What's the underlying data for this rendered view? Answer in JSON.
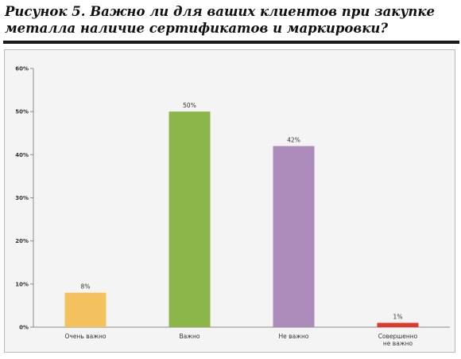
{
  "title": {
    "line1": "Рисунок 5. Важно ли для ваших клиентов при закупке",
    "line2": "металла наличие сертификатов и маркировки?"
  },
  "chart_data": {
    "type": "bar",
    "categories": [
      "Очень важно",
      "Важно",
      "Не важно",
      "Совершенно не важно"
    ],
    "category_lines": [
      [
        "Очень важно"
      ],
      [
        "Важно"
      ],
      [
        "Не важно"
      ],
      [
        "Совершенно",
        "не важно"
      ]
    ],
    "values": [
      8,
      50,
      42,
      1
    ],
    "data_labels": [
      "8%",
      "50%",
      "42%",
      "1%"
    ],
    "colors": [
      "#f3c25f",
      "#8db64a",
      "#ad8cbc",
      "#e03a2c"
    ],
    "ylim": [
      0,
      60
    ],
    "yticks": [
      0,
      10,
      20,
      30,
      40,
      50,
      60
    ],
    "ytick_labels": [
      "0%",
      "10%",
      "20%",
      "30%",
      "40%",
      "50%",
      "60%"
    ],
    "grid": false,
    "legend": "none"
  }
}
